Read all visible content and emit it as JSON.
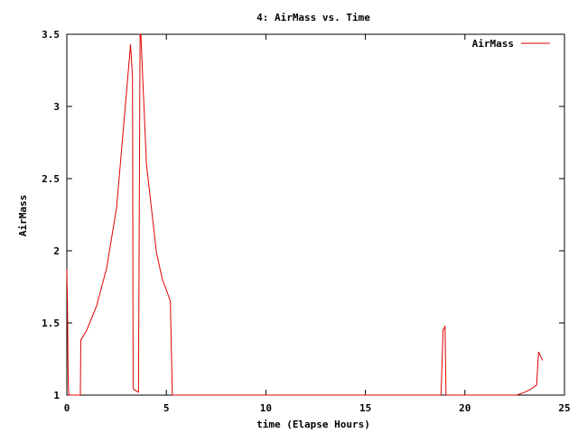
{
  "chart_data": {
    "type": "line",
    "title": "4: AirMass vs. Time",
    "xlabel": "time (Elapse Hours)",
    "ylabel": "AirMass",
    "xlim": [
      0,
      25
    ],
    "ylim": [
      1,
      3.5
    ],
    "xticks": [
      0,
      5,
      10,
      15,
      20,
      25
    ],
    "yticks": [
      1,
      1.5,
      2,
      2.5,
      3,
      3.5
    ],
    "xtick_labels": [
      "0",
      "5",
      "10",
      "15",
      "20",
      "25"
    ],
    "ytick_labels": [
      "1",
      "1.5",
      "2",
      "2.5",
      "3",
      "3.5"
    ],
    "grid": false,
    "legend_position": "top-right",
    "series": [
      {
        "name": "AirMass",
        "color": "#e00000",
        "x": [
          0.0,
          0.03,
          0.06,
          0.08,
          0.1,
          0.12,
          0.13,
          0.4,
          0.55,
          0.68,
          0.7,
          1.0,
          1.5,
          2.0,
          2.5,
          2.8,
          3.0,
          3.2,
          3.3,
          3.33,
          3.36,
          3.6,
          3.68,
          3.72,
          3.75,
          4.0,
          4.5,
          4.8,
          5.0,
          5.2,
          5.3,
          5.35,
          18.8,
          18.9,
          18.95,
          19.0,
          19.05,
          19.1,
          22.6,
          23.0,
          23.3,
          23.6,
          23.7,
          23.8,
          23.9
        ],
        "y": [
          1.87,
          1.65,
          1.2,
          1.05,
          1.0,
          1.0,
          1.0,
          1.0,
          1.0,
          1.0,
          1.38,
          1.45,
          1.62,
          1.88,
          2.3,
          2.78,
          3.1,
          3.43,
          3.2,
          1.05,
          1.04,
          1.02,
          3.5,
          3.6,
          3.4,
          2.6,
          1.99,
          1.8,
          1.73,
          1.65,
          1.0,
          1.0,
          1.0,
          1.45,
          1.46,
          1.48,
          1.0,
          1.0,
          1.0,
          1.02,
          1.04,
          1.07,
          1.3,
          1.27,
          1.24
        ]
      }
    ]
  }
}
